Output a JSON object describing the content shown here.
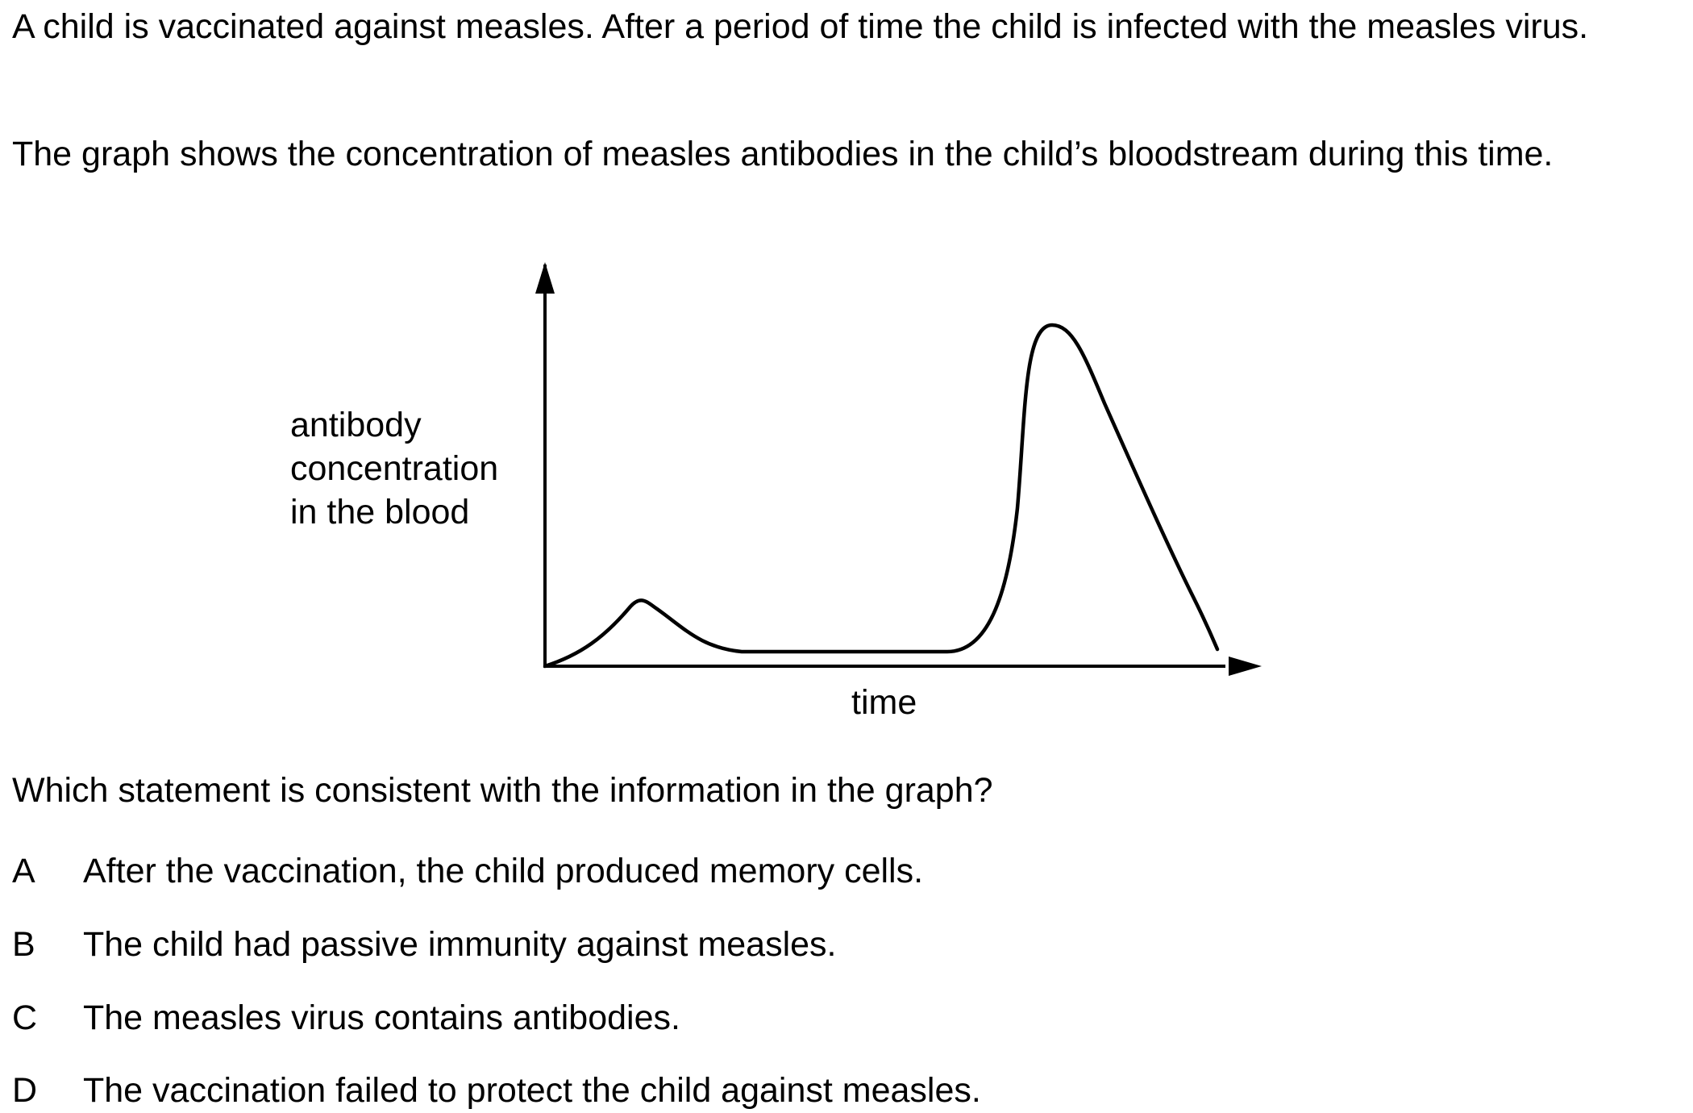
{
  "question": {
    "intro_1": "A child is vaccinated against measles. After a period of time the child is infected with the measles virus.",
    "intro_2": "The graph shows the concentration of measles antibodies in the child’s bloodstream during this time.",
    "prompt": "Which statement is consistent with the information in the graph?"
  },
  "chart_data": {
    "type": "line",
    "title": "",
    "xlabel": "time",
    "ylabel_lines": [
      "antibody",
      "concentration",
      "in the blood"
    ],
    "grid": false,
    "ticks": "none",
    "series": [
      {
        "description_points": [
          [
            0,
            0
          ],
          [
            0.13,
            0.12
          ],
          [
            0.28,
            0.03
          ],
          [
            0.6,
            0.03
          ],
          [
            0.75,
            0.68
          ],
          [
            0.97,
            0.02
          ]
        ]
      }
    ]
  },
  "options": [
    {
      "letter": "A",
      "text": "After the vaccination, the child produced memory cells."
    },
    {
      "letter": "B",
      "text": "The child had passive immunity against measles."
    },
    {
      "letter": "C",
      "text": "The measles virus contains antibodies."
    },
    {
      "letter": "D",
      "text": "The vaccination failed to protect the child against measles."
    }
  ]
}
